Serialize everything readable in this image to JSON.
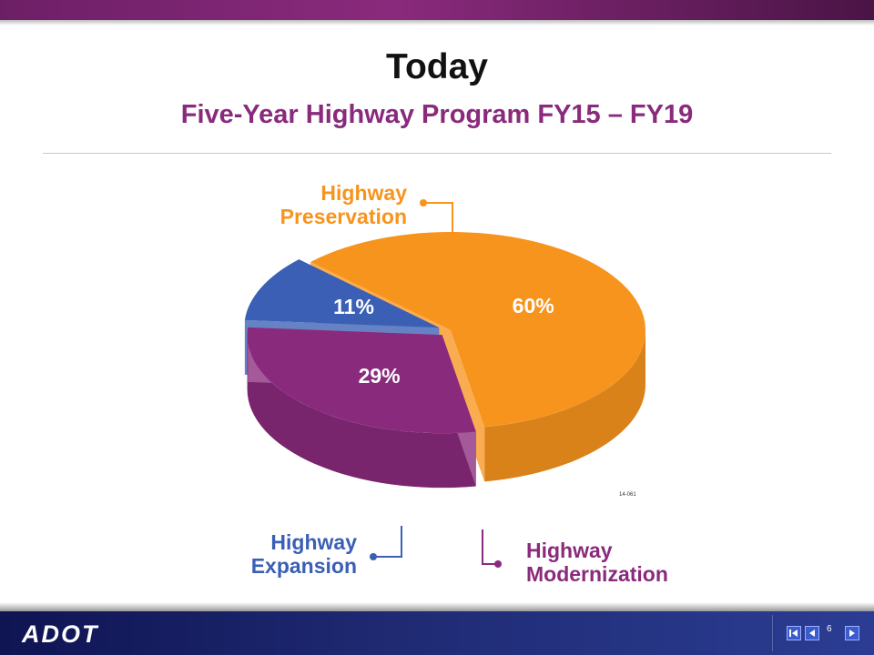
{
  "slide": {
    "title": "Today",
    "subtitle": "Five-Year Highway Program FY15 – FY19",
    "footer_logo": "ADOT",
    "page_number": "6"
  },
  "chart_data": {
    "type": "pie",
    "style": "3d",
    "slices": [
      {
        "label_lines": [
          "Highway",
          "Preservation"
        ],
        "value": 60,
        "value_label": "60%",
        "color": "#f7941e"
      },
      {
        "label_lines": [
          "Highway",
          "Modernization"
        ],
        "value": 29,
        "value_label": "29%",
        "color": "#8a2a7c"
      },
      {
        "label_lines": [
          "Highway",
          "Expansion"
        ],
        "value": 11,
        "value_label": "11%",
        "color": "#3a5fb5"
      }
    ],
    "annotation": "14-061"
  },
  "colors": {
    "accent": "#8a2a7c",
    "footer": "#1f2a73"
  },
  "icons": {
    "first": "first-slide-icon",
    "prev": "previous-slide-icon",
    "next": "next-slide-icon"
  }
}
